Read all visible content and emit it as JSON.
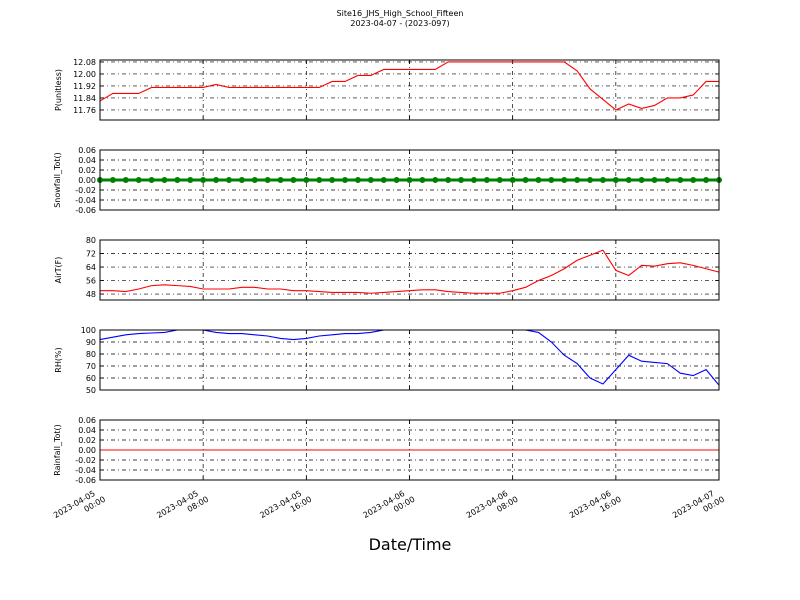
{
  "chart_data": {
    "type": "subplots",
    "title": "Site16_JHS_High_School_Fifteen",
    "subtitle": "2023-04-07 - (2023-097)",
    "xlabel": "Date/Time",
    "xlim": [
      "2023-04-05 00:00",
      "2023-04-07 00:00"
    ],
    "xticks": [
      "2023-04-05 00:00",
      "2023-04-05 08:00",
      "2023-04-05 16:00",
      "2023-04-06 00:00",
      "2023-04-06 08:00",
      "2023-04-06 16:00",
      "2023-04-07 00:00"
    ],
    "grid": true,
    "x": [
      "2023-04-05 00:00",
      "2023-04-05 01:00",
      "2023-04-05 02:00",
      "2023-04-05 03:00",
      "2023-04-05 04:00",
      "2023-04-05 05:00",
      "2023-04-05 06:00",
      "2023-04-05 07:00",
      "2023-04-05 08:00",
      "2023-04-05 09:00",
      "2023-04-05 10:00",
      "2023-04-05 11:00",
      "2023-04-05 12:00",
      "2023-04-05 13:00",
      "2023-04-05 14:00",
      "2023-04-05 15:00",
      "2023-04-05 16:00",
      "2023-04-05 17:00",
      "2023-04-05 18:00",
      "2023-04-05 19:00",
      "2023-04-05 20:00",
      "2023-04-05 21:00",
      "2023-04-05 22:00",
      "2023-04-05 23:00",
      "2023-04-06 00:00",
      "2023-04-06 01:00",
      "2023-04-06 02:00",
      "2023-04-06 03:00",
      "2023-04-06 04:00",
      "2023-04-06 05:00",
      "2023-04-06 06:00",
      "2023-04-06 07:00",
      "2023-04-06 08:00",
      "2023-04-06 09:00",
      "2023-04-06 10:00",
      "2023-04-06 11:00",
      "2023-04-06 12:00",
      "2023-04-06 13:00",
      "2023-04-06 14:00",
      "2023-04-06 15:00",
      "2023-04-06 16:00",
      "2023-04-06 17:00",
      "2023-04-06 18:00",
      "2023-04-06 19:00",
      "2023-04-06 20:00",
      "2023-04-06 21:00",
      "2023-04-06 22:00",
      "2023-04-06 23:00",
      "2023-04-07 00:00"
    ],
    "panels": [
      {
        "type": "line",
        "ylabel": "P(unitless)",
        "ylim": [
          11.693,
          12.093
        ],
        "yticks": [
          11.76,
          11.84,
          11.92,
          {
            "value": 12,
            "label": "12.00"
          },
          12.08
        ],
        "series": [
          {
            "color": "#ff0000",
            "values": [
              11.82,
              11.87,
              11.87,
              11.87,
              11.91,
              11.91,
              11.91,
              11.91,
              11.91,
              11.93,
              11.91,
              11.91,
              11.91,
              11.91,
              11.91,
              11.91,
              11.91,
              11.91,
              11.95,
              11.95,
              11.99,
              11.99,
              12.03,
              12.03,
              12.03,
              12.03,
              12.03,
              12.08,
              12.08,
              12.08,
              12.08,
              12.08,
              12.08,
              12.08,
              12.08,
              12.08,
              12.08,
              12.02,
              11.9,
              11.83,
              11.76,
              11.8,
              11.77,
              11.79,
              11.84,
              11.84,
              11.86,
              11.95,
              11.95
            ]
          }
        ]
      },
      {
        "type": "line",
        "marker": true,
        "ylabel": "Snowfall_Tot()",
        "ylim": [
          -0.06,
          0.06
        ],
        "yticks": [
          -0.06,
          -0.04,
          -0.02,
          {
            "value": 0,
            "label": "0.00"
          },
          0.02,
          0.04,
          0.06
        ],
        "series": [
          {
            "color": "#008000",
            "values": [
              0,
              0,
              0,
              0,
              0,
              0,
              0,
              0,
              0,
              0,
              0,
              0,
              0,
              0,
              0,
              0,
              0,
              0,
              0,
              0,
              0,
              0,
              0,
              0,
              0,
              0,
              0,
              0,
              0,
              0,
              0,
              0,
              0,
              0,
              0,
              0,
              0,
              0,
              0,
              0,
              0,
              0,
              0,
              0,
              0,
              0,
              0,
              0,
              0
            ]
          }
        ]
      },
      {
        "type": "line",
        "ylabel": "AirT(F)",
        "ylim": [
          44.5,
          80
        ],
        "yticks": [
          48,
          56,
          64,
          72,
          80
        ],
        "series": [
          {
            "color": "#ff0000",
            "values": [
              50,
              50,
              49.5,
              51,
              53,
              53.5,
              53,
              52.5,
              51,
              51,
              51,
              52,
              52,
              51,
              51,
              50,
              50,
              49.5,
              49,
              49,
              49,
              48.5,
              49,
              49.5,
              50,
              50.5,
              50.5,
              49.5,
              49,
              48.5,
              48.5,
              48.5,
              50,
              52,
              56,
              59,
              63,
              68,
              71,
              74,
              62,
              59,
              65,
              64.5,
              66,
              66.5,
              65,
              63,
              61
            ]
          }
        ]
      },
      {
        "type": "line",
        "ylabel": "RH(%)",
        "ylim": [
          50,
          100
        ],
        "yticks": [
          50,
          60,
          70,
          80,
          90,
          100
        ],
        "series": [
          {
            "color": "#0000ff",
            "values": [
              92,
              94,
              96,
              97,
              97.5,
              98,
              100,
              100,
              100,
              98,
              97,
              97,
              96,
              95,
              93,
              92,
              93,
              95,
              96,
              97,
              97,
              98,
              100,
              100,
              100,
              100,
              100,
              100,
              100,
              100,
              100,
              100,
              100,
              100,
              98,
              90,
              79,
              72,
              60,
              55,
              67,
              79,
              74,
              73,
              72,
              64,
              62,
              67,
              54
            ]
          }
        ]
      },
      {
        "type": "line",
        "ylabel": "Rainfall_Tot()",
        "ylim": [
          -0.06,
          0.06
        ],
        "yticks": [
          -0.06,
          -0.04,
          -0.02,
          {
            "value": 0,
            "label": "0.00"
          },
          0.02,
          0.04,
          0.06
        ],
        "series": [
          {
            "color": "#ff0000",
            "values": [
              0,
              0,
              0,
              0,
              0,
              0,
              0,
              0,
              0,
              0,
              0,
              0,
              0,
              0,
              0,
              0,
              0,
              0,
              0,
              0,
              0,
              0,
              0,
              0,
              0,
              0,
              0,
              0,
              0,
              0,
              0,
              0,
              0,
              0,
              0,
              0,
              0,
              0,
              0,
              0,
              0,
              0,
              0,
              0,
              0,
              0,
              0,
              0,
              0
            ]
          }
        ]
      }
    ]
  }
}
